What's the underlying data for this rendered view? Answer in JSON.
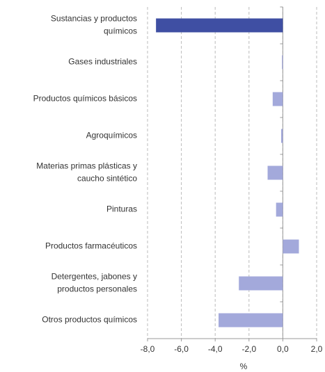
{
  "chart_data": {
    "type": "hbar",
    "categories": [
      [
        "Sustancias y productos",
        "químicos"
      ],
      [
        "Gases industriales"
      ],
      [
        "Productos químicos básicos"
      ],
      [
        "Agroquímicos"
      ],
      [
        "Materias primas plásticas y",
        "caucho sintético"
      ],
      [
        "Pinturas"
      ],
      [
        "Productos farmacéuticos"
      ],
      [
        "Detergentes, jabones y",
        "productos personales"
      ],
      [
        "Otros productos químicos"
      ]
    ],
    "values": [
      -7.5,
      -0.05,
      -0.6,
      -0.1,
      -0.9,
      -0.4,
      0.95,
      -2.6,
      -3.8
    ],
    "colors": [
      "#3f4fa3",
      "#a3a9db",
      "#a3a9db",
      "#a3a9db",
      "#a3a9db",
      "#a3a9db",
      "#a3a9db",
      "#a3a9db",
      "#a3a9db"
    ],
    "xlabel": "%",
    "xlim": [
      -8,
      2
    ],
    "xticks": [
      {
        "value": -8,
        "label": "-8,0"
      },
      {
        "value": -6,
        "label": "-6,0"
      },
      {
        "value": -4,
        "label": "-4,0"
      },
      {
        "value": -2,
        "label": "-2,0"
      },
      {
        "value": 0,
        "label": "0,0"
      },
      {
        "value": 2,
        "label": "2,0"
      }
    ],
    "grid": true
  }
}
